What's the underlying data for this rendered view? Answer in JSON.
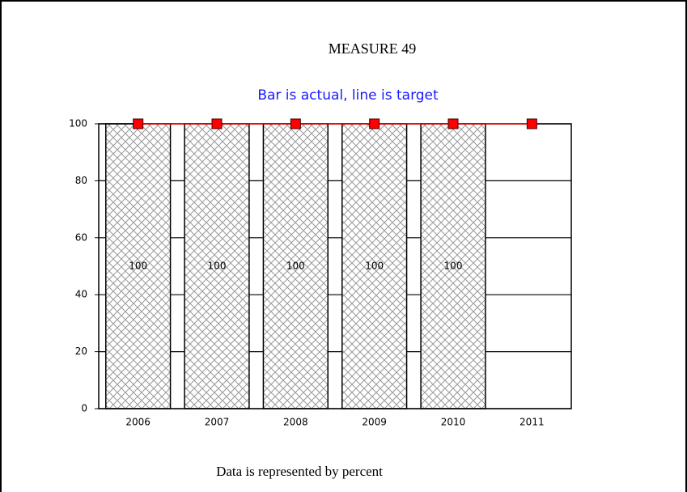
{
  "chart_data": {
    "type": "combo",
    "title": "MEASURE 49",
    "subtitle": "Bar is actual, line is target",
    "footnote": "Data is represented by percent",
    "categories": [
      "2006",
      "2007",
      "2008",
      "2009",
      "2010",
      "2011"
    ],
    "series": [
      {
        "type": "bar",
        "color": "#a0a0a0",
        "values": [
          100,
          100,
          100,
          100,
          100,
          null
        ]
      },
      {
        "type": "line",
        "color": "#ff0000",
        "values": [
          100,
          100,
          100,
          100,
          100,
          100
        ]
      }
    ],
    "ylim": [
      0,
      100
    ],
    "yticks": [
      0,
      20,
      40,
      60,
      80,
      100
    ],
    "grid": true
  }
}
